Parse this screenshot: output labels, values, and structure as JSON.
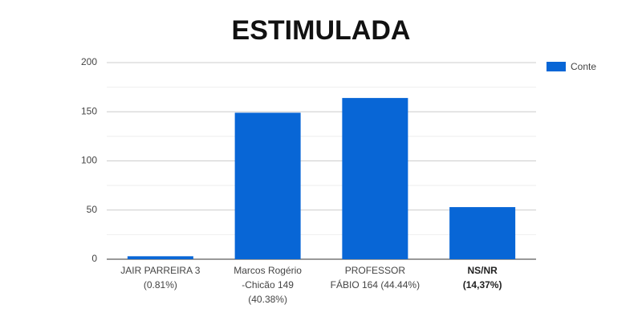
{
  "chart_data": {
    "type": "bar",
    "title": "ESTIMULADA",
    "categories": [
      [
        "JAIR PARREIRA 3",
        "(0.81%)"
      ],
      [
        "Marcos Rogério",
        "-Chicão 149",
        "(40.38%)"
      ],
      [
        "PROFESSOR",
        "FÁBIO 164 (44.44%)"
      ],
      [
        "NS/NR",
        "(14,37%)"
      ]
    ],
    "series": [
      {
        "name": "Conte",
        "color": "#0866d6",
        "values": [
          3,
          149,
          164,
          53
        ]
      }
    ],
    "ylim": [
      0,
      200
    ],
    "yticks": [
      0,
      50,
      100,
      150,
      200
    ],
    "minor_yticks": [
      25,
      75,
      125,
      175
    ],
    "grid": true,
    "legend": "right"
  }
}
